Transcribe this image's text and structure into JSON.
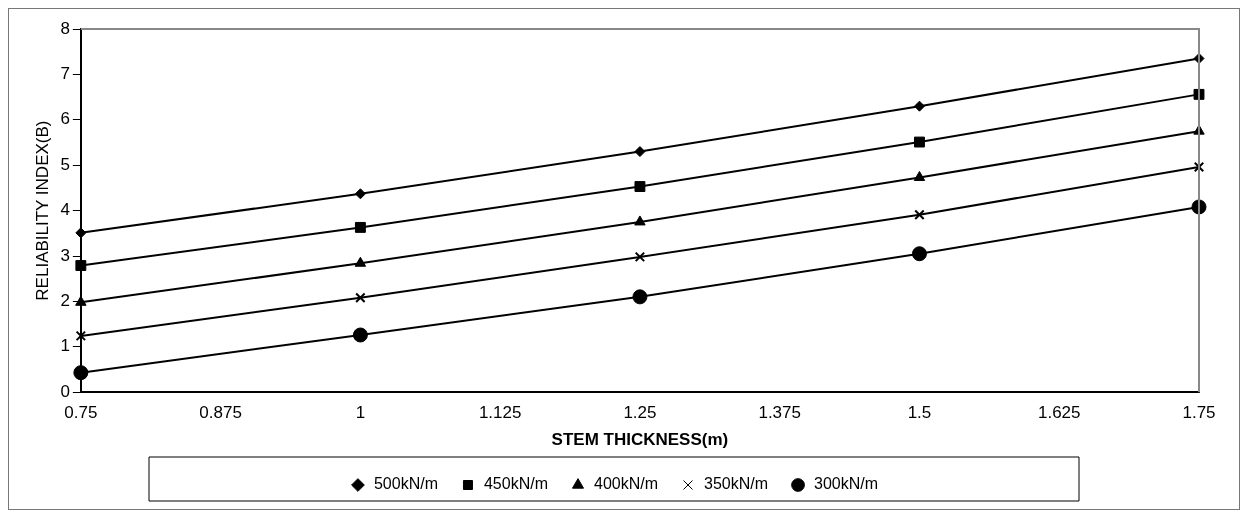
{
  "chart_data": {
    "type": "line",
    "xlabel": "STEM THICKNESS(m)",
    "ylabel": "RELIABILITY INDEX(B)",
    "x": [
      0.75,
      1,
      1.25,
      1.5,
      1.75
    ],
    "xlim": [
      0.75,
      1.75
    ],
    "xticks": [
      0.75,
      0.875,
      1,
      1.125,
      1.25,
      1.375,
      1.5,
      1.625,
      1.75
    ],
    "ylim": [
      0,
      8
    ],
    "yticks": [
      0,
      1,
      2,
      3,
      4,
      5,
      6,
      7,
      8
    ],
    "grid": false,
    "legend": "bottom",
    "line_style": "solid",
    "series": [
      {
        "name": "500kN/m",
        "color": "#000000",
        "marker": "diamond",
        "values": [
          3.51,
          4.37,
          5.3,
          6.3,
          7.35
        ]
      },
      {
        "name": "450kN/m",
        "color": "#000000",
        "marker": "square",
        "values": [
          2.79,
          3.63,
          4.53,
          5.51,
          6.56
        ]
      },
      {
        "name": "400kN/m",
        "color": "#000000",
        "marker": "triangle",
        "values": [
          1.98,
          2.84,
          3.75,
          4.73,
          5.75
        ]
      },
      {
        "name": "350kN/m",
        "color": "#000000",
        "marker": "cross",
        "values": [
          1.24,
          2.08,
          2.98,
          3.91,
          4.96
        ]
      },
      {
        "name": "300kN/m",
        "color": "#000000",
        "marker": "circle",
        "values": [
          0.43,
          1.26,
          2.1,
          3.05,
          4.08
        ]
      }
    ]
  }
}
